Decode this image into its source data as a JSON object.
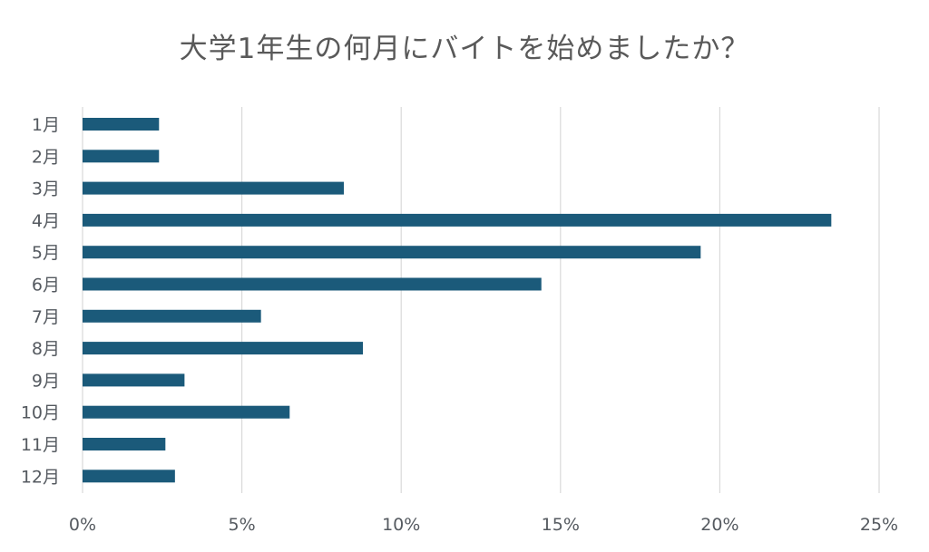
{
  "chart_data": {
    "type": "bar",
    "orientation": "horizontal",
    "title": "大学1年生の何月にバイトを始めましたか？",
    "xlabel": "",
    "ylabel": "",
    "categories": [
      "1月",
      "2月",
      "3月",
      "4月",
      "5月",
      "6月",
      "7月",
      "8月",
      "9月",
      "10月",
      "11月",
      "12月"
    ],
    "series": [
      {
        "values": [
          2.4,
          2.4,
          8.2,
          23.5,
          19.4,
          14.4,
          5.6,
          8.8,
          3.2,
          6.5,
          2.6,
          2.9
        ]
      }
    ],
    "xlim": [
      0,
      25
    ],
    "xticks": [
      0,
      5,
      10,
      15,
      20,
      25
    ],
    "xtick_labels": [
      "0%",
      "5%",
      "10%",
      "15%",
      "20%",
      "25%"
    ],
    "grid": true,
    "legend": "none",
    "colors": {
      "bar": "#1b5a7a",
      "grid": "#d9d9d9",
      "text": "#595959"
    }
  }
}
